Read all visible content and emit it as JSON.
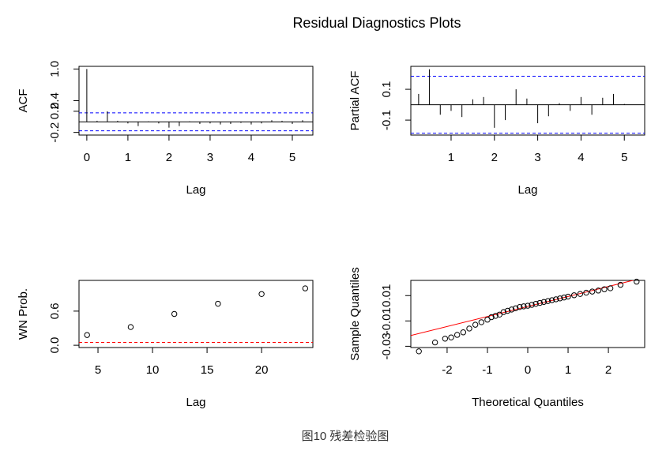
{
  "title": "Residual Diagnostics Plots",
  "caption": "图10 残差检验图",
  "chart_data": [
    {
      "type": "acf",
      "ylabel": "ACF",
      "xlabel": "Lag",
      "x": [
        0,
        0.25,
        0.5,
        0.75,
        1,
        1.25,
        1.5,
        1.75,
        2,
        2.25,
        2.5,
        2.75,
        3,
        3.25,
        3.5,
        3.75,
        4,
        4.25,
        4.5,
        4.75,
        5,
        5.25
      ],
      "values": [
        1,
        0.02,
        0.2,
        0.02,
        -0.03,
        -0.08,
        0.01,
        -0.03,
        -0.11,
        -0.08,
        0.01,
        -0.04,
        -0.03,
        -0.05,
        -0.04,
        -0.02,
        -0.05,
        -0.03,
        0.03,
        0.02,
        -0.04,
        0.03
      ],
      "ci_lines": [
        0.17,
        -0.17
      ],
      "ci_color": "#0000ff",
      "color": "#000000",
      "xlim": [
        -0.19,
        5.5
      ],
      "ylim": [
        -0.25,
        1.05
      ],
      "xticks": [
        0,
        1,
        2,
        3,
        4,
        5
      ],
      "yticks": [
        {
          "value": -0.2,
          "label": "-0.2"
        },
        0.2,
        0.4,
        {
          "value": 1.0,
          "label": "1.0"
        }
      ]
    },
    {
      "type": "acf",
      "ylabel": "Partial ACF",
      "xlabel": "Lag",
      "x": [
        0.25,
        0.5,
        0.75,
        1,
        1.25,
        1.5,
        1.75,
        2,
        2.25,
        2.5,
        2.75,
        3,
        3.25,
        3.5,
        3.75,
        4,
        4.25,
        4.5,
        4.75,
        5
      ],
      "values": [
        0.07,
        0.23,
        -0.065,
        -0.04,
        -0.08,
        0.035,
        0.05,
        -0.15,
        -0.1,
        0.1,
        0.04,
        -0.12,
        -0.075,
        0.01,
        -0.04,
        0.05,
        -0.065,
        0.045,
        0.07,
        0.005
      ],
      "ci_lines": [
        0.185,
        -0.185
      ],
      "ci_color": "#0000ff",
      "color": "#000000",
      "xlim": [
        0.07,
        5.47
      ],
      "ylim": [
        -0.197,
        0.249
      ],
      "xticks": [
        1,
        2,
        3,
        4,
        5
      ],
      "yticks": [
        -0.1,
        0.1
      ]
    },
    {
      "type": "scatter",
      "ylabel": "WN Prob.",
      "xlabel": "Lag",
      "x": [
        4,
        8,
        12,
        16,
        20,
        24
      ],
      "values": [
        0.18,
        0.32,
        0.55,
        0.73,
        0.9,
        1.0
      ],
      "ref_line": 0.05,
      "ref_color": "#ff0000",
      "color": "#000000",
      "xlim": [
        3.26,
        24.7
      ],
      "ylim": [
        -0.04,
        1.14
      ],
      "xticks": [
        5,
        10,
        15,
        20
      ],
      "yticks": [
        {
          "value": 0,
          "label": "0.0"
        },
        {
          "value": 0.6,
          "label": "0.6"
        }
      ]
    },
    {
      "type": "qq",
      "ylabel": "Sample Quantiles",
      "xlabel": "Theoretical Quantiles",
      "x": [
        -2.7,
        -2.3,
        -2.05,
        -1.9,
        -1.75,
        -1.6,
        -1.45,
        -1.3,
        -1.15,
        -1.0,
        -0.9,
        -0.8,
        -0.7,
        -0.6,
        -0.5,
        -0.4,
        -0.3,
        -0.2,
        -0.1,
        0,
        0.1,
        0.2,
        0.3,
        0.4,
        0.5,
        0.6,
        0.7,
        0.8,
        0.9,
        1.0,
        1.15,
        1.3,
        1.45,
        1.6,
        1.75,
        1.9,
        2.05,
        2.3,
        2.7
      ],
      "values": [
        -0.034,
        -0.027,
        -0.024,
        -0.023,
        -0.021,
        -0.019,
        -0.016,
        -0.013,
        -0.011,
        -0.009,
        -0.007,
        -0.006,
        -0.005,
        -0.003,
        -0.002,
        -0.001,
        0.0,
        0.001,
        0.0015,
        0.002,
        0.0027,
        0.0035,
        0.0042,
        0.005,
        0.0057,
        0.0064,
        0.0071,
        0.0078,
        0.0085,
        0.0092,
        0.0103,
        0.0113,
        0.0123,
        0.0132,
        0.014,
        0.015,
        0.0158,
        0.0185,
        0.021
      ],
      "qqline": {
        "intercept": 0.0014,
        "slope": 0.0079
      },
      "line_color": "#ff0000",
      "color": "#000000",
      "xlim": [
        -2.9,
        2.9
      ],
      "ylim": [
        -0.031,
        0.022
      ],
      "xticks": [
        -2,
        -1,
        0,
        1,
        2
      ],
      "yticks": [
        -0.03,
        -0.01,
        0.01
      ]
    }
  ]
}
